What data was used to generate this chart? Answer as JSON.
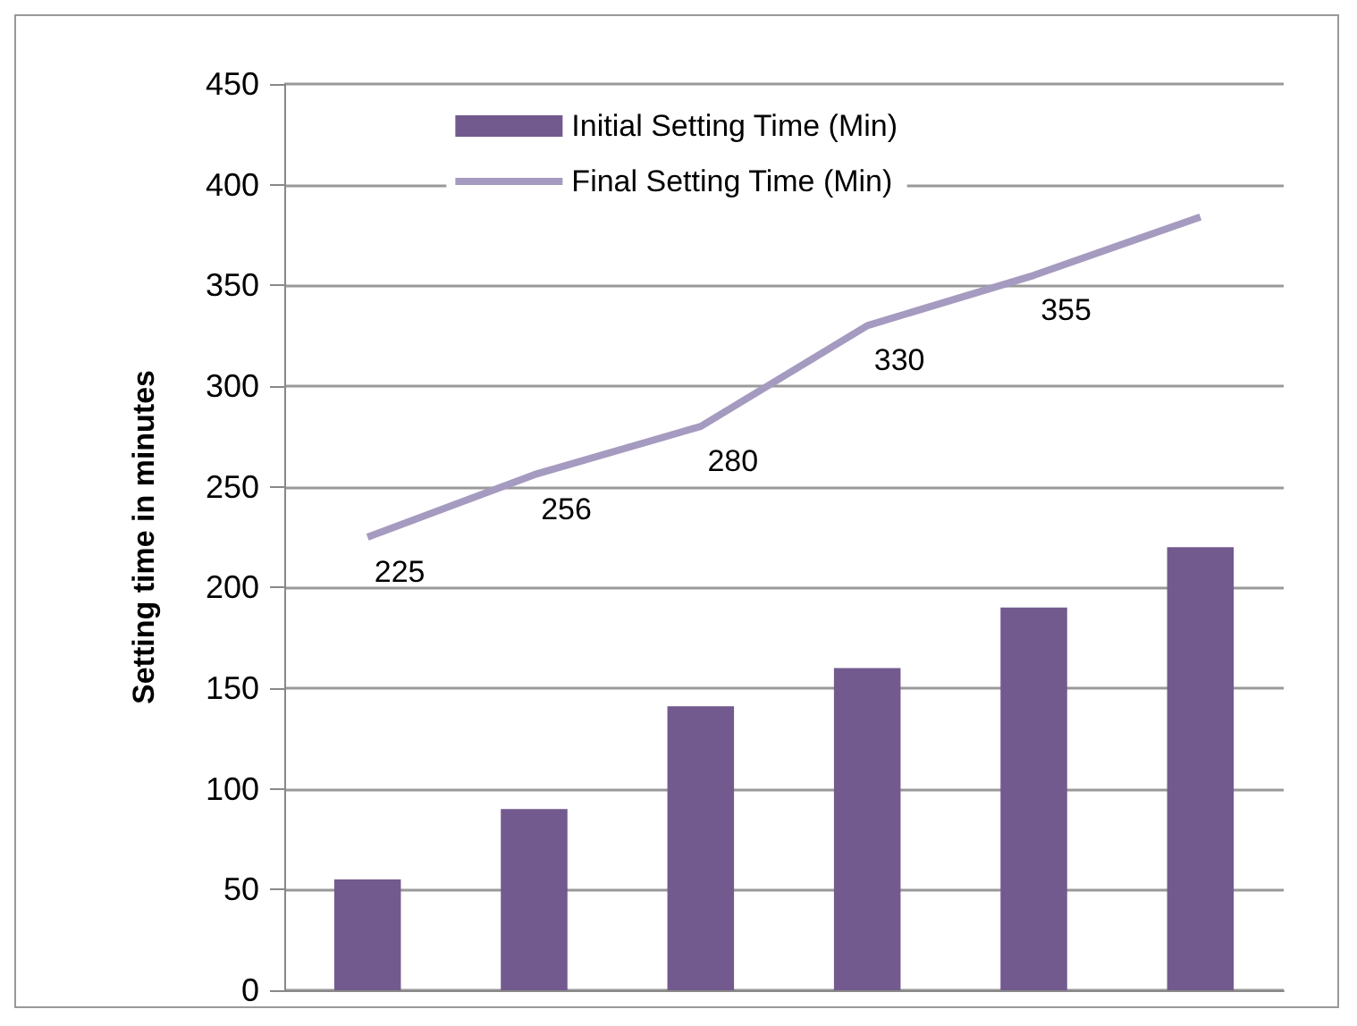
{
  "chart_data": {
    "type": "bar",
    "ylabel": "Setting time in minutes",
    "categories": [
      null,
      null,
      null,
      null,
      null,
      null
    ],
    "series": [
      {
        "name": "Initial Setting Time (Min)",
        "color": "#725a8e",
        "values": [
          55,
          90,
          141,
          160,
          190,
          220
        ]
      },
      {
        "name": "Final Setting Time (Min)",
        "type": "line",
        "color": "#a59abf",
        "values": [
          225,
          256,
          280,
          330,
          355,
          384
        ],
        "value_labels": [
          "225",
          "256",
          "280",
          "330",
          "355",
          null
        ]
      }
    ],
    "ylim": [
      0,
      450
    ],
    "yticks": [
      0,
      50,
      100,
      150,
      200,
      250,
      300,
      350,
      400,
      450
    ],
    "grid": "y",
    "legend": "top",
    "marker": "none"
  }
}
